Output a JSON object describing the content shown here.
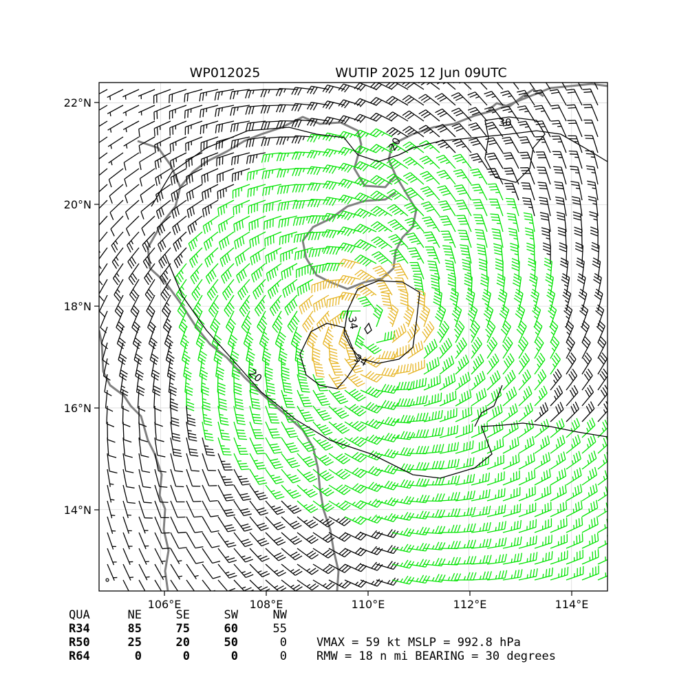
{
  "header": {
    "storm_id": "WP012025",
    "storm_title": "WUTIP 2025 12 Jun 09UTC"
  },
  "map": {
    "lon_range": [
      104.8,
      114.7
    ],
    "lat_range": [
      12.4,
      22.4
    ],
    "lon_ticks": [
      "106°E",
      "108°E",
      "110°E",
      "112°E",
      "114°E"
    ],
    "lat_ticks": [
      "22°N",
      "20°N",
      "18°N",
      "16°N",
      "14°N"
    ],
    "storm_center": {
      "lon": 110.0,
      "lat": 17.6
    },
    "contour_labels": [
      "34",
      "34",
      "20",
      "20",
      "30"
    ],
    "colors": {
      "coast": "#808080",
      "barb_low": "#000000",
      "barb_34": "#00e400",
      "barb_50": "#e6b422",
      "barb_64": "#ff5500",
      "contour": "#000000",
      "grid": "#d8d8d8"
    }
  },
  "wind_radii_table": {
    "header": [
      "QUA",
      "NE",
      "SE",
      "SW",
      "NW"
    ],
    "rows": [
      {
        "label": "R34",
        "NE": "85",
        "SE": "75",
        "SW": "60",
        "NW": "55"
      },
      {
        "label": "R50",
        "NE": "25",
        "SE": "20",
        "SW": "50",
        "NW": "0"
      },
      {
        "label": "R64",
        "NE": "0",
        "SE": "0",
        "SW": "0",
        "NW": "0"
      }
    ]
  },
  "summary": {
    "line1": "VMAX =  59 kt MSLP = 992.8 hPa",
    "line2": "RMW =  18 n mi BEARING =  30 degrees"
  }
}
